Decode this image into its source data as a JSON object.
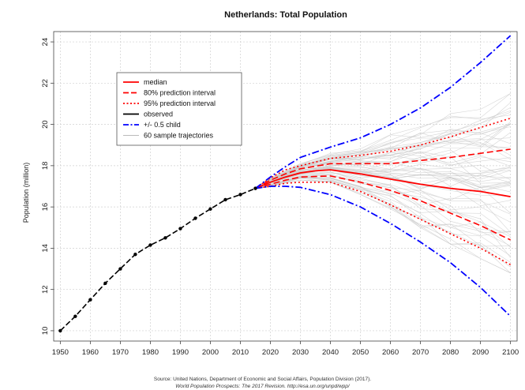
{
  "chart_data": {
    "type": "line",
    "title": "Netherlands: Total Population",
    "xlabel": "",
    "ylabel": "Population (million)",
    "xlim": [
      1950,
      2100
    ],
    "ylim": [
      10,
      24
    ],
    "xticks": [
      "1950",
      "1960",
      "1970",
      "1980",
      "1990",
      "2000",
      "2010",
      "2020",
      "2030",
      "2040",
      "2050",
      "2060",
      "2070",
      "2080",
      "2090",
      "2100"
    ],
    "yticks": [
      "10",
      "12",
      "14",
      "16",
      "18",
      "20",
      "22",
      "24"
    ],
    "grid": true,
    "legend_position": "top-left",
    "legend": [
      {
        "label": "median",
        "color": "#ff0000",
        "style": "solid"
      },
      {
        "label": "80% prediction interval",
        "color": "#ff0000",
        "style": "dashed"
      },
      {
        "label": "95% prediction interval",
        "color": "#ff0000",
        "style": "dotted"
      },
      {
        "label": "observed",
        "color": "#000000",
        "style": "solid"
      },
      {
        "label": "+/- 0.5 child",
        "color": "#0000ff",
        "style": "dashdot"
      },
      {
        "label": "60 sample trajectories",
        "color": "#bbbbbb",
        "style": "solid"
      }
    ],
    "series": [
      {
        "name": "observed",
        "color": "#000000",
        "x": [
          1950,
          1955,
          1960,
          1965,
          1970,
          1975,
          1980,
          1985,
          1990,
          1995,
          2000,
          2005,
          2010,
          2015
        ],
        "y": [
          10.0,
          10.7,
          11.5,
          12.3,
          13.0,
          13.7,
          14.15,
          14.5,
          14.95,
          15.45,
          15.9,
          16.35,
          16.6,
          16.9
        ]
      },
      {
        "name": "median",
        "color": "#ff0000",
        "x": [
          2015,
          2020,
          2025,
          2030,
          2035,
          2040,
          2050,
          2060,
          2070,
          2080,
          2090,
          2100
        ],
        "y": [
          16.9,
          17.2,
          17.45,
          17.65,
          17.75,
          17.8,
          17.6,
          17.35,
          17.1,
          16.9,
          16.75,
          16.5
        ]
      },
      {
        "name": "80% prediction interval upper",
        "color": "#ff0000",
        "x": [
          2015,
          2020,
          2025,
          2030,
          2040,
          2050,
          2060,
          2070,
          2080,
          2090,
          2100
        ],
        "y": [
          16.9,
          17.3,
          17.6,
          17.85,
          18.1,
          18.1,
          18.1,
          18.25,
          18.4,
          18.6,
          18.8
        ]
      },
      {
        "name": "80% prediction interval lower",
        "color": "#ff0000",
        "x": [
          2015,
          2020,
          2025,
          2030,
          2040,
          2050,
          2060,
          2070,
          2080,
          2090,
          2100
        ],
        "y": [
          16.9,
          17.1,
          17.3,
          17.45,
          17.5,
          17.2,
          16.8,
          16.3,
          15.7,
          15.1,
          14.4
        ]
      },
      {
        "name": "95% prediction interval upper",
        "color": "#ff0000",
        "x": [
          2015,
          2020,
          2025,
          2030,
          2040,
          2050,
          2060,
          2070,
          2080,
          2090,
          2100
        ],
        "y": [
          16.9,
          17.4,
          17.8,
          18.0,
          18.35,
          18.5,
          18.7,
          19.0,
          19.4,
          19.85,
          20.3
        ]
      },
      {
        "name": "95% prediction interval lower",
        "color": "#ff0000",
        "x": [
          2015,
          2020,
          2025,
          2030,
          2040,
          2050,
          2060,
          2070,
          2080,
          2090,
          2100
        ],
        "y": [
          16.9,
          17.0,
          17.15,
          17.2,
          17.2,
          16.75,
          16.1,
          15.4,
          14.7,
          14.0,
          13.2
        ]
      },
      {
        "name": "+/- 0.5 child upper",
        "color": "#0000ff",
        "x": [
          2015,
          2020,
          2025,
          2030,
          2040,
          2050,
          2060,
          2070,
          2080,
          2090,
          2100
        ],
        "y": [
          16.9,
          17.45,
          17.95,
          18.4,
          18.9,
          19.35,
          20.0,
          20.8,
          21.8,
          23.0,
          24.3
        ]
      },
      {
        "name": "+/- 0.5 child lower",
        "color": "#0000ff",
        "x": [
          2015,
          2020,
          2025,
          2030,
          2040,
          2050,
          2060,
          2070,
          2080,
          2090,
          2100
        ],
        "y": [
          16.9,
          17.0,
          17.0,
          16.95,
          16.6,
          16.0,
          15.2,
          14.3,
          13.3,
          12.1,
          10.7
        ]
      }
    ],
    "trajectories": {
      "name": "60 sample trajectories",
      "color": "#c8c8c8",
      "count": 60,
      "x": [
        2015,
        2020,
        2030,
        2040,
        2050,
        2060,
        2070,
        2080,
        2090,
        2100
      ],
      "low": [
        16.9,
        17.0,
        17.3,
        17.2,
        16.6,
        15.9,
        15.0,
        14.2,
        13.5,
        12.8
      ],
      "high": [
        16.9,
        17.4,
        18.1,
        18.6,
        19.0,
        19.5,
        20.1,
        20.6,
        21.0,
        21.5
      ]
    }
  },
  "source_line1": "Source: United Nations, Department of Economic and Social Affairs, Population Division (2017).",
  "source_line2": "World Population Prospects: The 2017 Revision. http://esa.un.org/unpd/wpp/"
}
